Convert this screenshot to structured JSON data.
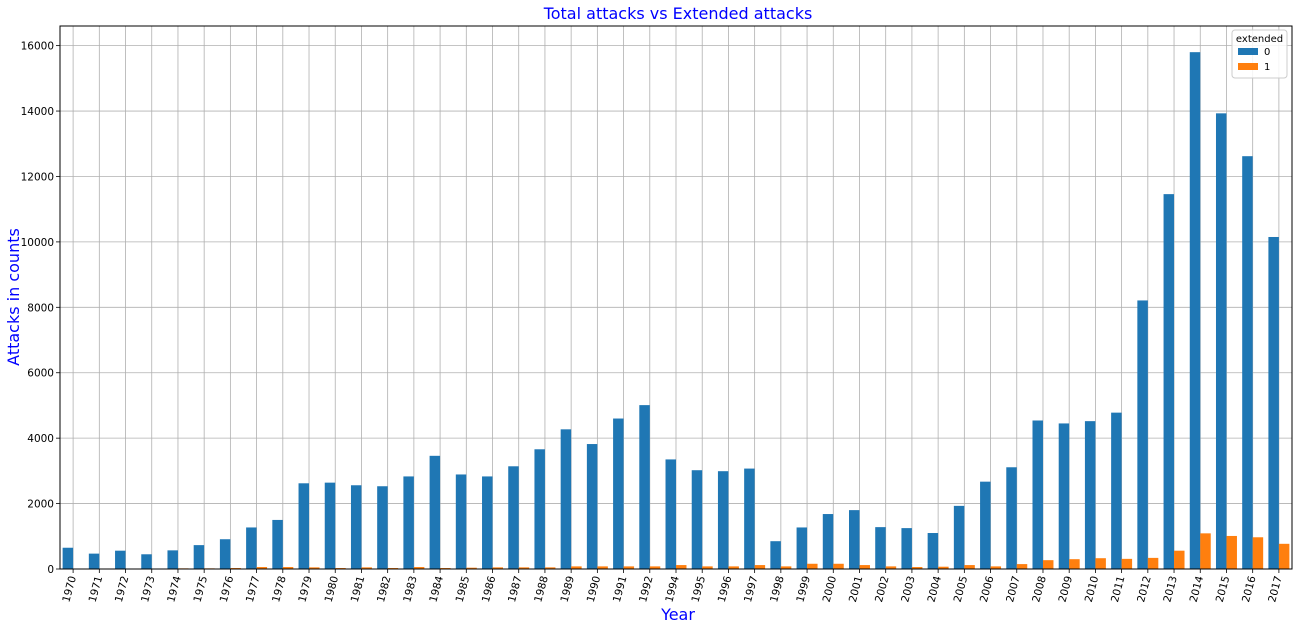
{
  "chart_data": {
    "type": "bar",
    "title": "Total attacks vs Extended attacks",
    "xlabel": "Year",
    "ylabel": "Attacks in counts",
    "categories": [
      "1970",
      "1971",
      "1972",
      "1973",
      "1974",
      "1975",
      "1976",
      "1977",
      "1978",
      "1979",
      "1980",
      "1981",
      "1982",
      "1983",
      "1984",
      "1985",
      "1986",
      "1987",
      "1988",
      "1989",
      "1990",
      "1991",
      "1992",
      "1994",
      "1995",
      "1996",
      "1997",
      "1998",
      "1999",
      "2000",
      "2001",
      "2002",
      "2003",
      "2004",
      "2005",
      "2006",
      "2007",
      "2008",
      "2009",
      "2010",
      "2011",
      "2012",
      "2013",
      "2014",
      "2015",
      "2016",
      "2017"
    ],
    "series": [
      {
        "name": "0",
        "color": "#1f77b4",
        "values": [
          650,
          470,
          560,
          450,
          570,
          730,
          910,
          1270,
          1500,
          2620,
          2640,
          2560,
          2530,
          2830,
          3460,
          2890,
          2830,
          3140,
          3660,
          4270,
          3820,
          4600,
          5010,
          3350,
          3020,
          2990,
          3070,
          850,
          1270,
          1680,
          1800,
          1280,
          1250,
          1100,
          1930,
          2670,
          3110,
          4540,
          4450,
          4520,
          4780,
          8210,
          11460,
          15800,
          13930,
          12620,
          10150
        ]
      },
      {
        "name": "1",
        "color": "#ff7f0e",
        "values": [
          10,
          10,
          10,
          10,
          20,
          20,
          30,
          60,
          60,
          50,
          30,
          50,
          30,
          60,
          30,
          40,
          50,
          50,
          50,
          80,
          80,
          80,
          80,
          120,
          80,
          80,
          120,
          80,
          160,
          160,
          120,
          80,
          60,
          70,
          120,
          80,
          150,
          270,
          300,
          330,
          310,
          340,
          560,
          1090,
          1010,
          970,
          770
        ]
      }
    ],
    "ylim": [
      0,
      16600
    ],
    "yticks": [
      0,
      2000,
      4000,
      6000,
      8000,
      10000,
      12000,
      14000,
      16000
    ],
    "grid": true,
    "legend": {
      "title": "extended",
      "position": "top-right"
    }
  }
}
